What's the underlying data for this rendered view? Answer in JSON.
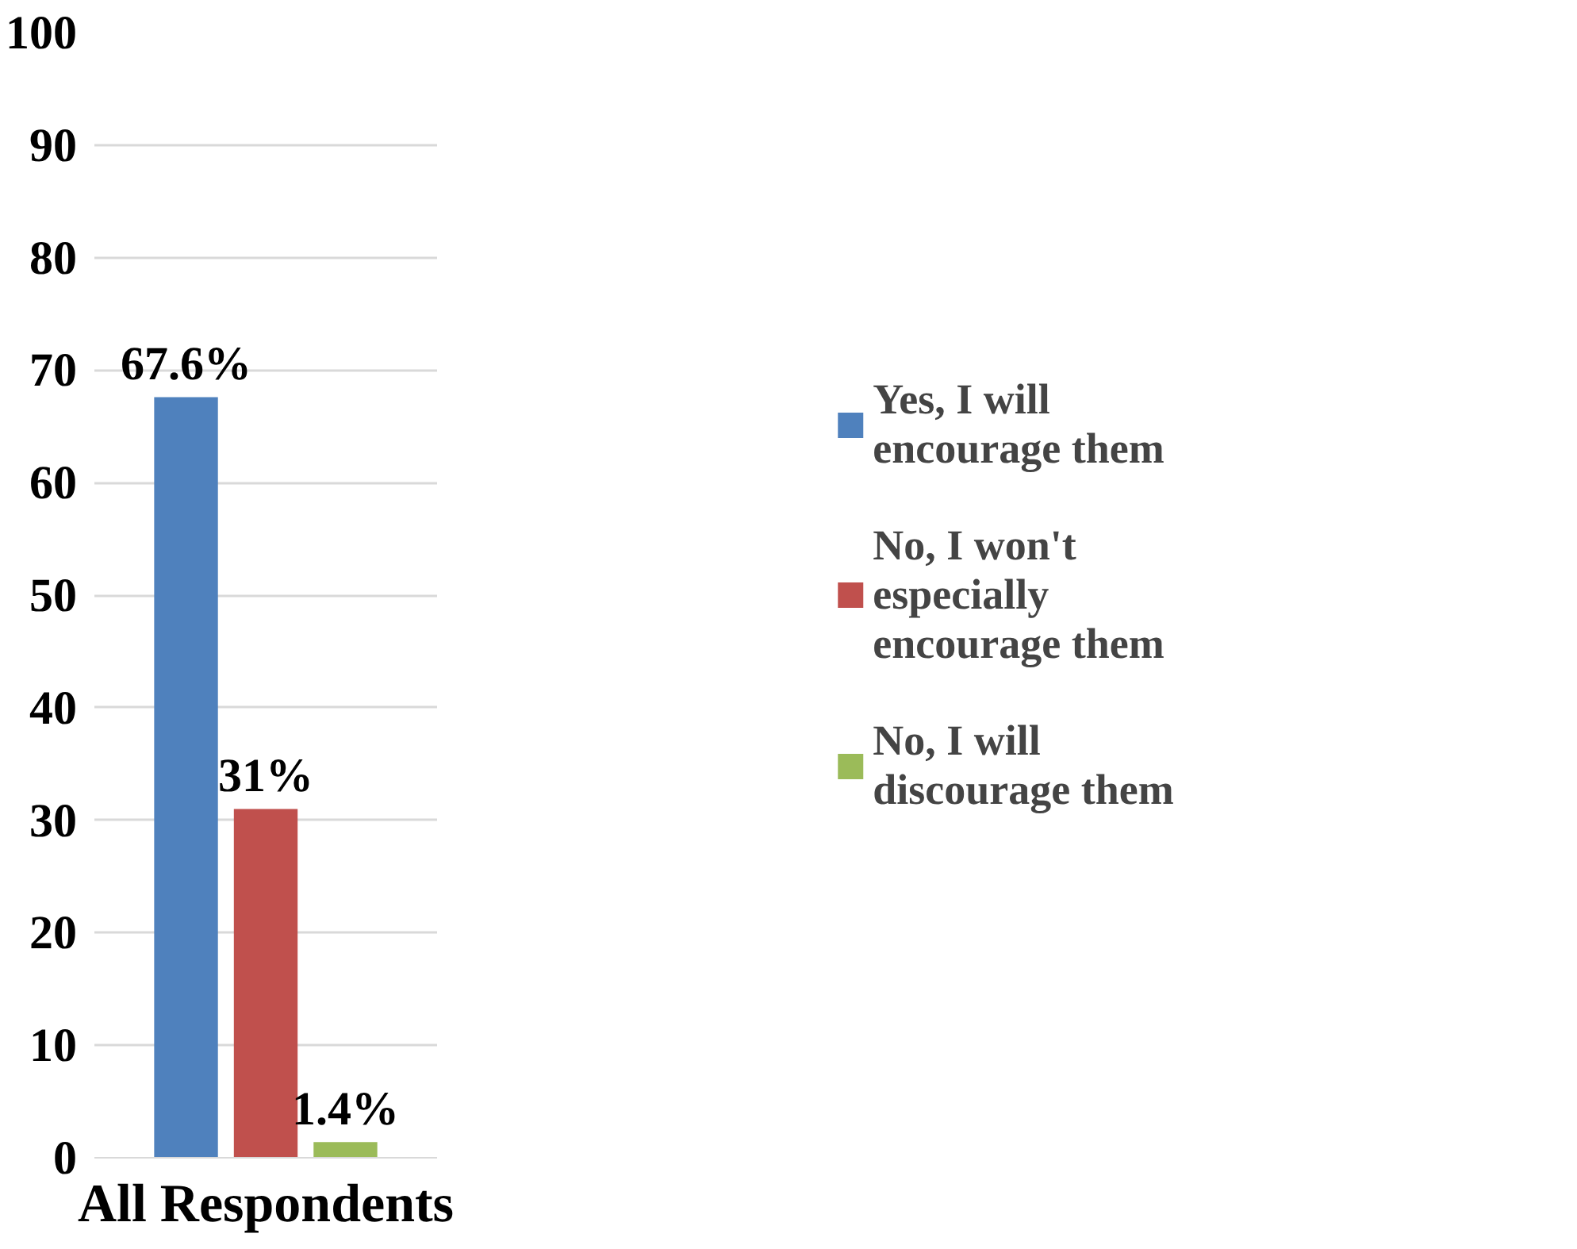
{
  "chart_data": {
    "type": "bar",
    "categories": [
      "All Respondents"
    ],
    "series": [
      {
        "name": "Yes, I will encourage them",
        "color": "#4f81bd",
        "values": [
          67.6
        ],
        "value_labels": [
          "67.6%"
        ]
      },
      {
        "name": "No, I won't especially encourage them",
        "color": "#c0504d",
        "values": [
          31
        ],
        "value_labels": [
          "31%"
        ]
      },
      {
        "name": "No, I will discourage them",
        "color": "#9bbb59",
        "values": [
          1.4
        ],
        "value_labels": [
          "1.4%"
        ]
      }
    ],
    "ylim": [
      0,
      100
    ],
    "yticks": [
      0,
      10,
      20,
      30,
      40,
      50,
      60,
      70,
      80,
      90,
      100
    ],
    "grid": "y",
    "legend": "right"
  }
}
